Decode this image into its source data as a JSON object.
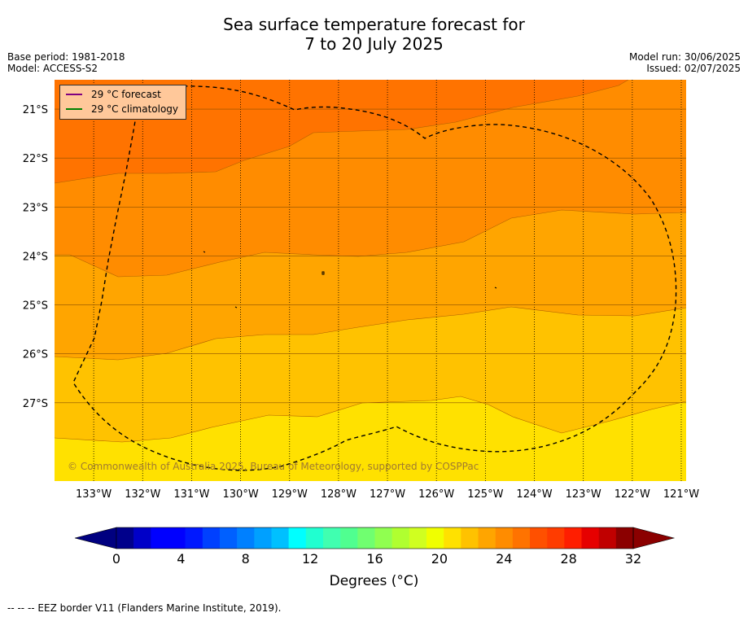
{
  "title_line1": "Sea surface temperature forecast for",
  "title_line2": "7 to 20 July 2025",
  "base_period": "Base period: 1981-2018",
  "model": "Model: ACCESS-S2",
  "model_run": "Model run: 30/06/2025",
  "issued": "Issued: 02/07/2025",
  "legend": {
    "forecast_label": "29 °C  forecast",
    "forecast_color": "#800080",
    "climatology_label": "29 °C  climatology",
    "climatology_color": "#008000"
  },
  "copyright": "© Commonwealth of Australia 2025, Bureau of Meteorology, supported by COSPPac",
  "map": {
    "lon_range": [
      -133.8,
      -120.9
    ],
    "lat_range": [
      -28.6,
      -20.4
    ],
    "lon_ticks": [
      "133°W",
      "132°W",
      "131°W",
      "130°W",
      "129°W",
      "128°W",
      "127°W",
      "126°W",
      "125°W",
      "124°W",
      "123°W",
      "122°W",
      "121°W"
    ],
    "lat_ticks": [
      "21°S",
      "22°S",
      "23°S",
      "24°S",
      "25°S",
      "26°S",
      "27°S"
    ],
    "bands": [
      {
        "range": "28-29 °C",
        "color": "#ff7300"
      },
      {
        "range": "27-28 °C",
        "color": "#ff8c00"
      },
      {
        "range": "26-27 °C",
        "color": "#ffa500"
      },
      {
        "range": "25-26 °C",
        "color": "#ffc200"
      },
      {
        "range": "24-25 °C",
        "color": "#ffe100"
      }
    ]
  },
  "colorbar": {
    "ticks": [
      "0",
      "4",
      "8",
      "12",
      "16",
      "20",
      "24",
      "28",
      "32"
    ],
    "colors": [
      "#00008b",
      "#0000c8",
      "#0000ff",
      "#0000ff",
      "#0018ff",
      "#0040ff",
      "#0060ff",
      "#0080ff",
      "#00a0ff",
      "#00c0ff",
      "#00ffff",
      "#20ffd0",
      "#40ffb0",
      "#50ff90",
      "#70ff70",
      "#90ff50",
      "#b0ff30",
      "#d0ff20",
      "#f0ff00",
      "#ffe100",
      "#ffc200",
      "#ffa500",
      "#ff8c00",
      "#ff7300",
      "#ff5000",
      "#ff3c00",
      "#ff1e00",
      "#e60000",
      "#c00000",
      "#8b0000"
    ],
    "under_color": "#000080",
    "over_color": "#8b0000",
    "units": "Degrees (°C)"
  },
  "footnote": "--  --  -- EEZ border V11 (Flanders Marine Institute, 2019)."
}
